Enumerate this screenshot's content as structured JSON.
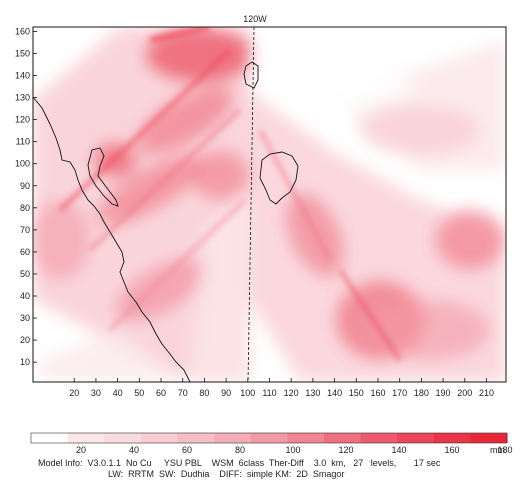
{
  "map": {
    "meridian_label": "120W",
    "y_ticks": [
      "10",
      "20",
      "30",
      "40",
      "50",
      "60",
      "70",
      "80",
      "90",
      "100",
      "110",
      "120",
      "130",
      "140",
      "150",
      "160"
    ],
    "x_ticks": [
      "20",
      "30",
      "40",
      "50",
      "60",
      "70",
      "80",
      "90",
      "100",
      "110",
      "120",
      "130",
      "140",
      "150",
      "160",
      "170",
      "180",
      "190",
      "200",
      "210"
    ],
    "x_range": [
      1,
      219
    ],
    "y_range": [
      1,
      162
    ]
  },
  "colorbar": {
    "labels": [
      "20",
      "40",
      "60",
      "80",
      "100",
      "120",
      "140",
      "160",
      "180"
    ],
    "unit": "mm",
    "colors": [
      "#ffffff",
      "#fbe6e9",
      "#f9dbe0",
      "#f8ccd2",
      "#f6bec6",
      "#f5adb8",
      "#f39aa7",
      "#f18594",
      "#ef6f80",
      "#ed5a6c",
      "#ec4659",
      "#ea3548",
      "#e82838"
    ]
  },
  "info": {
    "line1": "Model Info:  V3.0.1.1  No Cu     YSU PBL    WSM  6class  Ther-Diff    3.0  km,   27   levels,       17 sec",
    "line2": "LW:  RRTM  SW:  Dudhia    DIFF:  simple KM:  2D  Smagor"
  }
}
